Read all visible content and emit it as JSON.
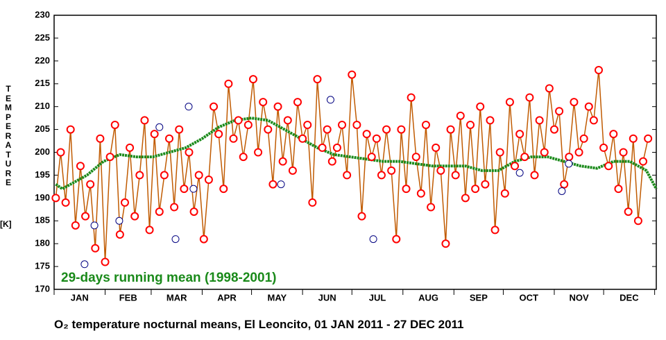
{
  "chart_data": {
    "type": "line",
    "title": "O₂ temperature nocturnal means, El Leoncito, 01 JAN 2011 - 27 DEC 2011",
    "y_label": "TEMPERATURE",
    "y_unit": "[K]",
    "annotation": "29-days running mean (1998-2001)",
    "categories": [
      "JAN",
      "FEB",
      "MAR",
      "APR",
      "MAY",
      "JUN",
      "JUL",
      "AUG",
      "SEP",
      "OCT",
      "NOV",
      "DEC"
    ],
    "xlim": [
      0,
      366
    ],
    "xticks": [
      0,
      31,
      59,
      90,
      120,
      151,
      181,
      212,
      243,
      273,
      304,
      334,
      365
    ],
    "ylim": [
      170,
      230
    ],
    "yticks": [
      170,
      175,
      180,
      185,
      190,
      195,
      200,
      205,
      210,
      215,
      220,
      225,
      230
    ],
    "series": [
      {
        "color": "#c05a00",
        "marker_color": "#ff0000",
        "marker_fill": "#ffffff",
        "x": [
          1,
          4,
          7,
          10,
          13,
          16,
          19,
          22,
          25,
          28,
          31,
          34,
          37,
          40,
          43,
          46,
          49,
          52,
          55,
          58,
          61,
          64,
          67,
          70,
          73,
          76,
          79,
          82,
          85,
          88,
          91,
          94,
          97,
          100,
          103,
          106,
          109,
          112,
          115,
          118,
          121,
          124,
          127,
          130,
          133,
          136,
          139,
          142,
          145,
          148,
          151,
          154,
          157,
          160,
          163,
          166,
          169,
          172,
          175,
          178,
          181,
          184,
          187,
          190,
          193,
          196,
          199,
          202,
          205,
          208,
          211,
          214,
          217,
          220,
          223,
          226,
          229,
          232,
          235,
          238,
          241,
          244,
          247,
          250,
          253,
          256,
          259,
          262,
          265,
          268,
          271,
          274,
          277,
          280,
          283,
          286,
          289,
          292,
          295,
          298,
          301,
          304,
          307,
          310,
          313,
          316,
          319,
          322,
          325,
          328,
          331,
          334,
          337,
          340,
          343,
          346,
          349,
          352,
          355,
          358,
          361
        ],
        "values": [
          190,
          200,
          189,
          205,
          184,
          197,
          186,
          193,
          179,
          203,
          176,
          199,
          206,
          182,
          189,
          201,
          186,
          195,
          207,
          183,
          204,
          187,
          195,
          203,
          188,
          205,
          192,
          200,
          187,
          195,
          181,
          194,
          210,
          204,
          192,
          215,
          203,
          207,
          199,
          206,
          216,
          200,
          211,
          205,
          193,
          210,
          198,
          207,
          196,
          211,
          203,
          206,
          189,
          216,
          201,
          205,
          198,
          201,
          206,
          195,
          217,
          206,
          186,
          204,
          199,
          203,
          195,
          205,
          196,
          181,
          205,
          192,
          212,
          199,
          191,
          206,
          188,
          201,
          196,
          180,
          205,
          195,
          208,
          190,
          206,
          192,
          210,
          193,
          207,
          183,
          200,
          191,
          211,
          197,
          204,
          199,
          212,
          195,
          207,
          200,
          214,
          205,
          209,
          193,
          199,
          211,
          200,
          203,
          210,
          207,
          218,
          201,
          197,
          204,
          192,
          200,
          187,
          203,
          185,
          198,
          203
        ]
      },
      {
        "color": "#000080",
        "marker_fill": "#ffffff",
        "x": [
          18.5,
          24.5,
          39.6,
          64,
          73.8,
          81.8,
          84.7,
          137.9,
          168,
          194,
          283,
          308.6,
          312.8
        ],
        "values": [
          175.5,
          184,
          185,
          205.5,
          181,
          210,
          192,
          193,
          211.5,
          181,
          195.5,
          191.5,
          197.5
        ]
      },
      {
        "color": "#1a8a1a",
        "x": [
          1,
          5,
          20,
          30,
          40,
          50,
          60,
          70,
          80,
          90,
          100,
          110,
          120,
          130,
          140,
          150,
          160,
          170,
          180,
          190,
          200,
          210,
          220,
          230,
          240,
          250,
          260,
          270,
          280,
          290,
          300,
          310,
          320,
          330,
          340,
          350,
          360,
          366
        ],
        "values": [
          193,
          192,
          195,
          198,
          199.5,
          199,
          199,
          200,
          201,
          203,
          205.5,
          207,
          207.5,
          207,
          205,
          203,
          201,
          199.5,
          199,
          198.5,
          198,
          198,
          197.5,
          197,
          197,
          197,
          196,
          196,
          198,
          199,
          199,
          198,
          197,
          196.5,
          198,
          198,
          196,
          192
        ]
      }
    ]
  }
}
